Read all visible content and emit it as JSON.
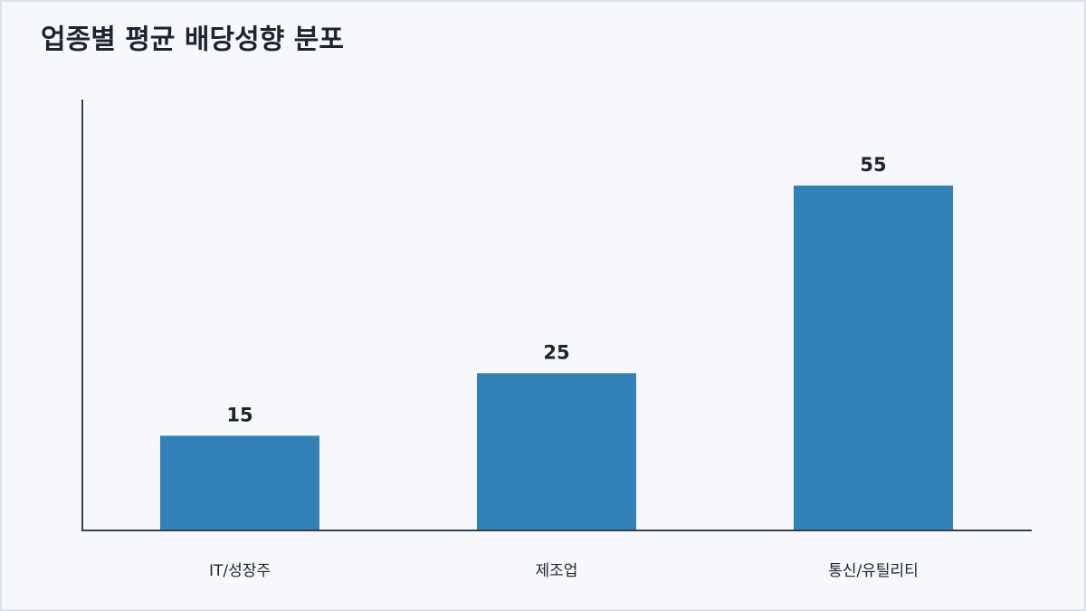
{
  "chart_data": {
    "type": "bar",
    "title": "업종별 평균 배당성향 분포",
    "categories": [
      "IT/성장주",
      "제조업",
      "통신/유틸리티"
    ],
    "values": [
      15,
      25,
      55
    ],
    "color": "#3282b8",
    "ylim": [
      0,
      68.75
    ],
    "grid": false
  }
}
